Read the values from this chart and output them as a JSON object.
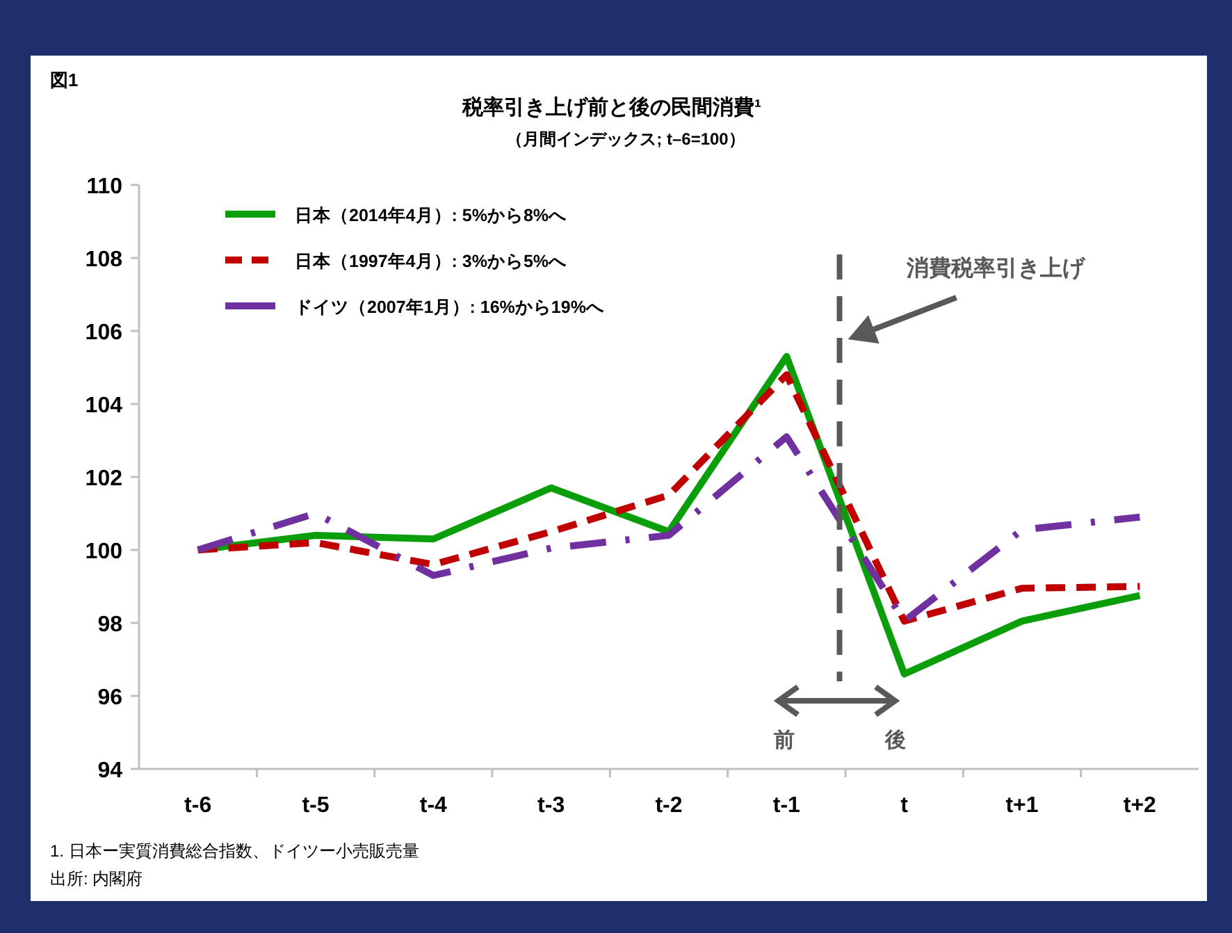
{
  "chart_data": {
    "type": "line",
    "title": "税率引き上げ前と後の民間消費¹",
    "subtitle": "（月間インデックス; t–6=100）",
    "categories": [
      "t-6",
      "t-5",
      "t-4",
      "t-3",
      "t-2",
      "t-1",
      "t",
      "t+1",
      "t+2"
    ],
    "ylim": [
      94,
      110
    ],
    "yticks": [
      94,
      96,
      98,
      100,
      102,
      104,
      106,
      108,
      110
    ],
    "series": [
      {
        "name": "日本（2014年4月）: 5%から8%へ",
        "color": "#0a9e0a",
        "line_style": "solid",
        "values": [
          100,
          100.4,
          100.3,
          101.7,
          100.5,
          105.3,
          96.6,
          98.05,
          98.75
        ]
      },
      {
        "name": "日本（1997年4月）: 3%から5%へ",
        "color": "#c00000",
        "line_style": "dashed",
        "values": [
          100,
          100.2,
          99.6,
          100.5,
          101.5,
          104.8,
          98.05,
          98.95,
          99.0
        ]
      },
      {
        "name": "ドイツ（2007年1月）: 16%から19%へ",
        "color": "#7030a0",
        "line_style": "dashdot",
        "values": [
          100,
          101.0,
          99.3,
          100.05,
          100.4,
          103.1,
          98.05,
          100.55,
          100.9
        ]
      }
    ],
    "annotations": [
      "図1",
      "消費税率引き上げ",
      "前",
      "後",
      "1. 日本ー実質消費総合指数、ドイツー小売販売量",
      "出所: 内閣府"
    ],
    "legend": "top left",
    "grid": false
  }
}
